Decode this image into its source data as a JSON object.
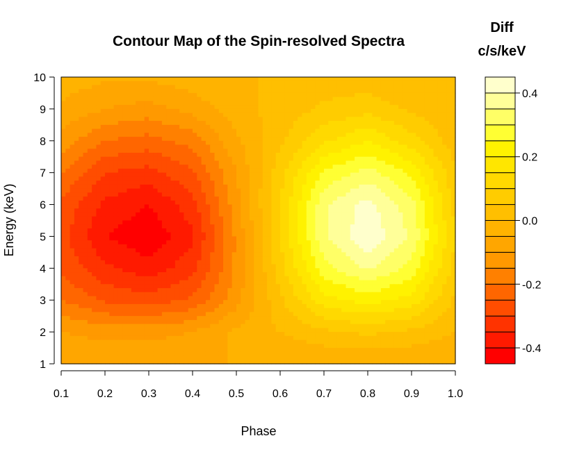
{
  "chart_data": {
    "type": "heatmap",
    "subtype": "filled-contour",
    "title": "Contour Map of the Spin-resolved Spectra",
    "xlabel": "Phase",
    "ylabel": "Energy (keV)",
    "xlim": [
      0.1,
      1.0
    ],
    "ylim": [
      1,
      10
    ],
    "x_ticks": [
      "0.1",
      "0.2",
      "0.3",
      "0.4",
      "0.5",
      "0.6",
      "0.7",
      "0.8",
      "0.9",
      "1.0"
    ],
    "y_ticks": [
      "1",
      "2",
      "3",
      "4",
      "5",
      "6",
      "7",
      "8",
      "9",
      "10"
    ],
    "x": [
      0.1,
      0.2,
      0.3,
      0.4,
      0.5,
      0.6,
      0.7,
      0.8,
      0.9,
      1.0
    ],
    "y": [
      1,
      2,
      3,
      4,
      5,
      6,
      7,
      8,
      9,
      10
    ],
    "z": [
      [
        -0.05,
        -0.05,
        -0.05,
        -0.05,
        -0.05,
        -0.05,
        -0.05,
        -0.05,
        -0.05,
        -0.05
      ],
      [
        -0.1,
        -0.12,
        -0.12,
        -0.1,
        -0.04,
        0.0,
        0.04,
        0.06,
        0.04,
        0.0
      ],
      [
        -0.2,
        -0.26,
        -0.28,
        -0.24,
        -0.12,
        0.04,
        0.18,
        0.22,
        0.18,
        0.04
      ],
      [
        -0.26,
        -0.34,
        -0.38,
        -0.32,
        -0.14,
        0.08,
        0.28,
        0.36,
        0.28,
        0.08
      ],
      [
        -0.28,
        -0.4,
        -0.44,
        -0.36,
        -0.14,
        0.1,
        0.34,
        0.44,
        0.34,
        0.1
      ],
      [
        -0.26,
        -0.36,
        -0.4,
        -0.32,
        -0.12,
        0.1,
        0.34,
        0.42,
        0.32,
        0.08
      ],
      [
        -0.2,
        -0.3,
        -0.32,
        -0.26,
        -0.1,
        0.08,
        0.26,
        0.32,
        0.24,
        0.06
      ],
      [
        -0.12,
        -0.2,
        -0.22,
        -0.18,
        -0.06,
        0.04,
        0.14,
        0.2,
        0.12,
        0.02
      ],
      [
        -0.06,
        -0.1,
        -0.12,
        -0.08,
        -0.02,
        0.02,
        0.06,
        0.08,
        0.04,
        0.0
      ],
      [
        -0.02,
        -0.04,
        -0.04,
        -0.02,
        0.0,
        0.0,
        0.02,
        0.02,
        0.0,
        0.0
      ]
    ],
    "colorbar": {
      "title": "Diff",
      "unit": "c/s/keV",
      "range": [
        -0.45,
        0.45
      ],
      "tick_values": [
        -0.4,
        -0.2,
        0.0,
        0.2,
        0.4
      ],
      "ticks": [
        "-0.4",
        "-0.2",
        "0.0",
        "0.2",
        "0.4"
      ],
      "levels": [
        -0.45,
        -0.4,
        -0.35,
        -0.3,
        -0.25,
        -0.2,
        -0.15,
        -0.1,
        -0.05,
        0.0,
        0.05,
        0.1,
        0.15,
        0.2,
        0.25,
        0.3,
        0.35,
        0.4,
        0.45
      ],
      "colors": [
        "#ff0000",
        "#ff1a00",
        "#ff3300",
        "#ff4d00",
        "#ff6600",
        "#ff8000",
        "#ff9900",
        "#ffa600",
        "#ffb300",
        "#ffbf00",
        "#ffcc00",
        "#ffd900",
        "#ffe600",
        "#fff200",
        "#ffff33",
        "#ffff66",
        "#ffff99",
        "#ffffcc"
      ]
    },
    "grid": false,
    "legend_position": "right"
  }
}
